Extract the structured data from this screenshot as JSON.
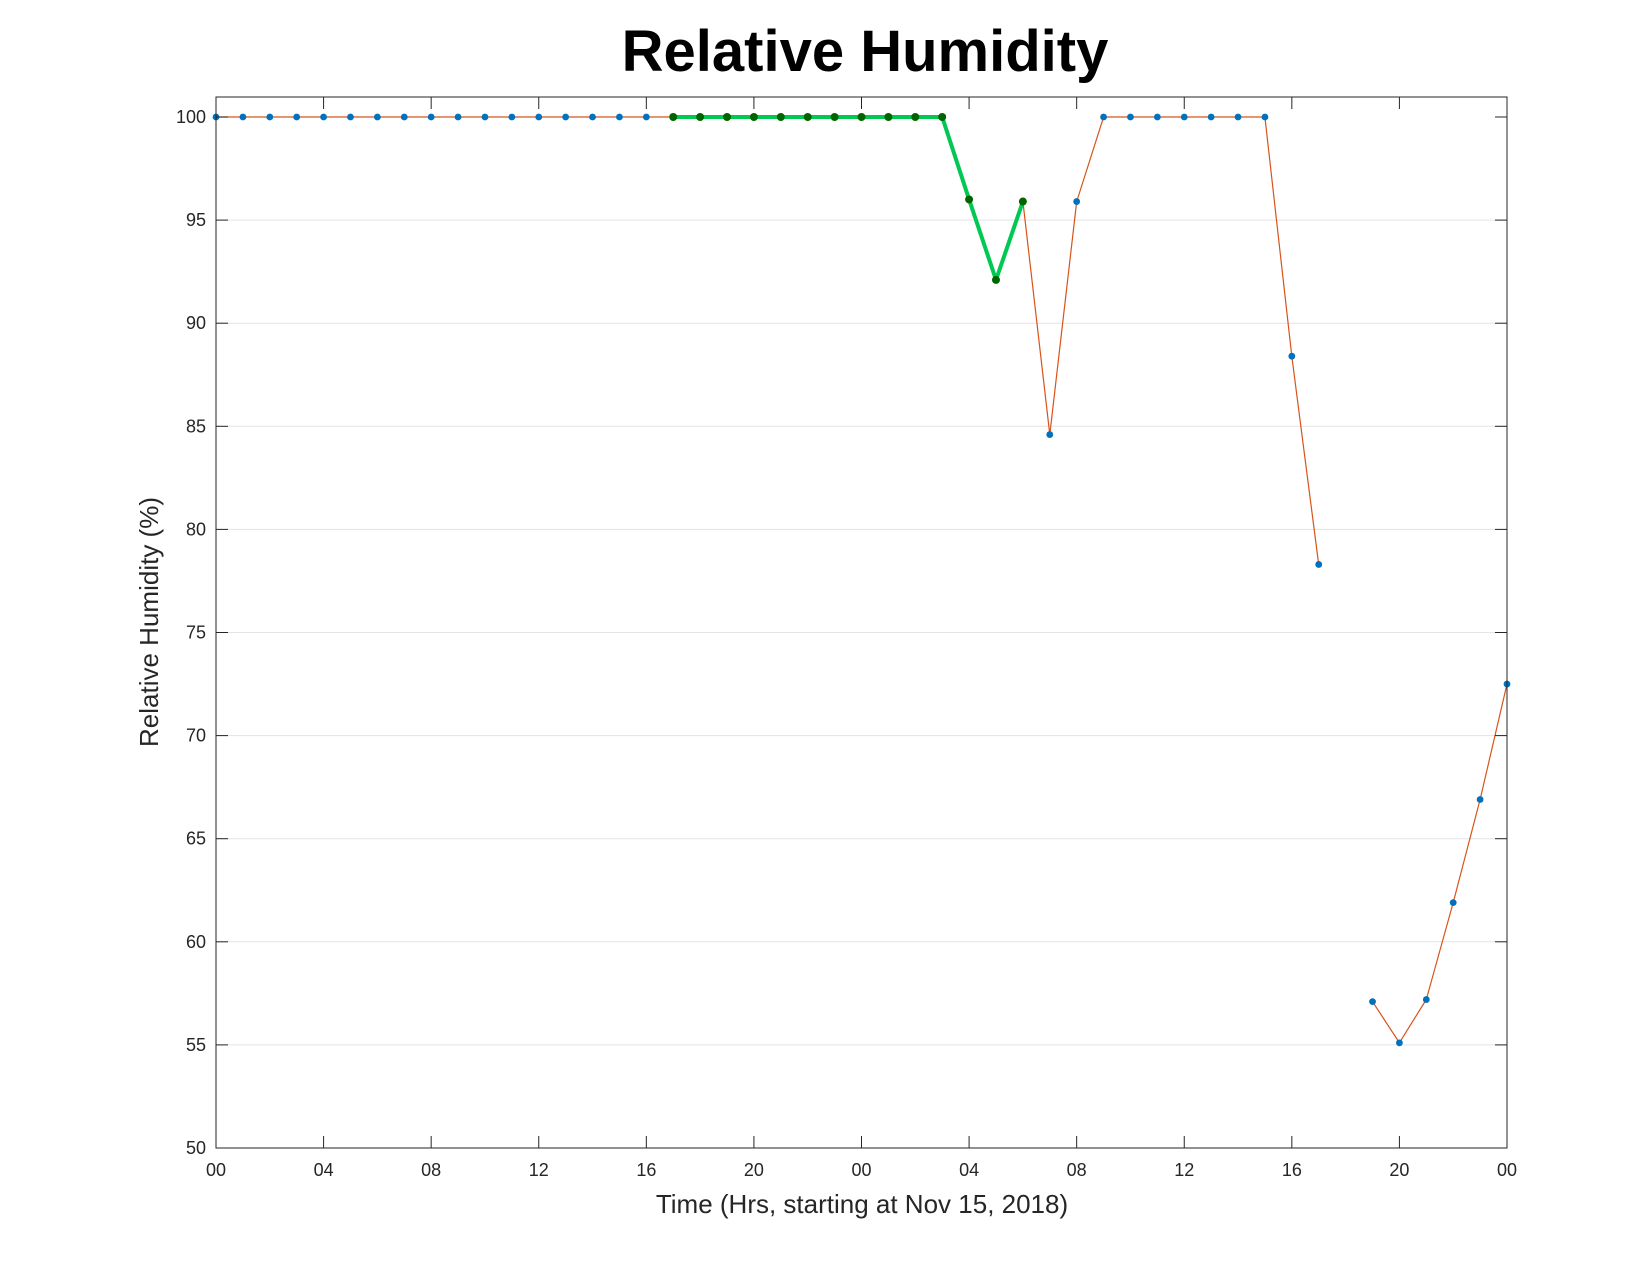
{
  "chart_data": {
    "type": "line",
    "title": "Relative Humidity",
    "xlabel": "Time (Hrs, starting at Nov 15, 2018)",
    "ylabel": "Relative Humidity (%)",
    "ylim": [
      50,
      100
    ],
    "yticks": [
      50,
      55,
      60,
      65,
      70,
      75,
      80,
      85,
      90,
      95,
      100
    ],
    "x_hours_range": [
      0,
      48
    ],
    "xtick_hours": [
      0,
      4,
      8,
      12,
      16,
      20,
      24,
      28,
      32,
      36,
      40,
      44,
      48
    ],
    "xtick_labels": [
      "00",
      "04",
      "08",
      "12",
      "16",
      "20",
      "00",
      "04",
      "08",
      "12",
      "16",
      "20",
      "00"
    ],
    "grid": "horizontal",
    "series": [
      {
        "role": "observations",
        "line_color": "#d95319",
        "marker_color": "#0072bd",
        "points": [
          [
            0,
            100
          ],
          [
            1,
            100
          ],
          [
            2,
            100
          ],
          [
            3,
            100
          ],
          [
            4,
            100
          ],
          [
            5,
            100
          ],
          [
            6,
            100
          ],
          [
            7,
            100
          ],
          [
            8,
            100
          ],
          [
            9,
            100
          ],
          [
            10,
            100
          ],
          [
            11,
            100
          ],
          [
            12,
            100
          ],
          [
            13,
            100
          ],
          [
            14,
            100
          ],
          [
            15,
            100
          ],
          [
            16,
            100
          ],
          [
            17,
            100
          ],
          [
            18,
            100
          ],
          [
            19,
            100
          ],
          [
            20,
            100
          ],
          [
            21,
            100
          ],
          [
            22,
            100
          ],
          [
            23,
            100
          ],
          [
            24,
            100
          ],
          [
            25,
            100
          ],
          [
            26,
            100
          ],
          [
            27,
            100
          ],
          [
            28,
            96
          ],
          [
            29,
            92.1
          ],
          [
            30,
            95.9
          ],
          [
            31,
            84.6
          ],
          [
            32,
            95.9
          ],
          [
            33,
            100
          ],
          [
            34,
            100
          ],
          [
            35,
            100
          ],
          [
            36,
            100
          ],
          [
            37,
            100
          ],
          [
            38,
            100
          ],
          [
            39,
            100
          ],
          [
            40,
            88.4
          ],
          [
            41,
            78.3
          ],
          null,
          [
            43,
            57.1
          ],
          [
            44,
            55.1
          ],
          [
            45,
            57.2
          ],
          [
            46,
            61.9
          ],
          [
            47,
            66.9
          ],
          [
            48,
            72.5
          ]
        ]
      },
      {
        "role": "highlight",
        "line_color": "#00c853",
        "marker_color": "#006400",
        "points": [
          [
            17,
            100
          ],
          [
            18,
            100
          ],
          [
            19,
            100
          ],
          [
            20,
            100
          ],
          [
            21,
            100
          ],
          [
            22,
            100
          ],
          [
            23,
            100
          ],
          [
            24,
            100
          ],
          [
            25,
            100
          ],
          [
            26,
            100
          ],
          [
            27,
            100
          ],
          [
            28,
            96
          ],
          [
            29,
            92.1
          ],
          [
            30,
            95.9
          ]
        ]
      }
    ]
  }
}
